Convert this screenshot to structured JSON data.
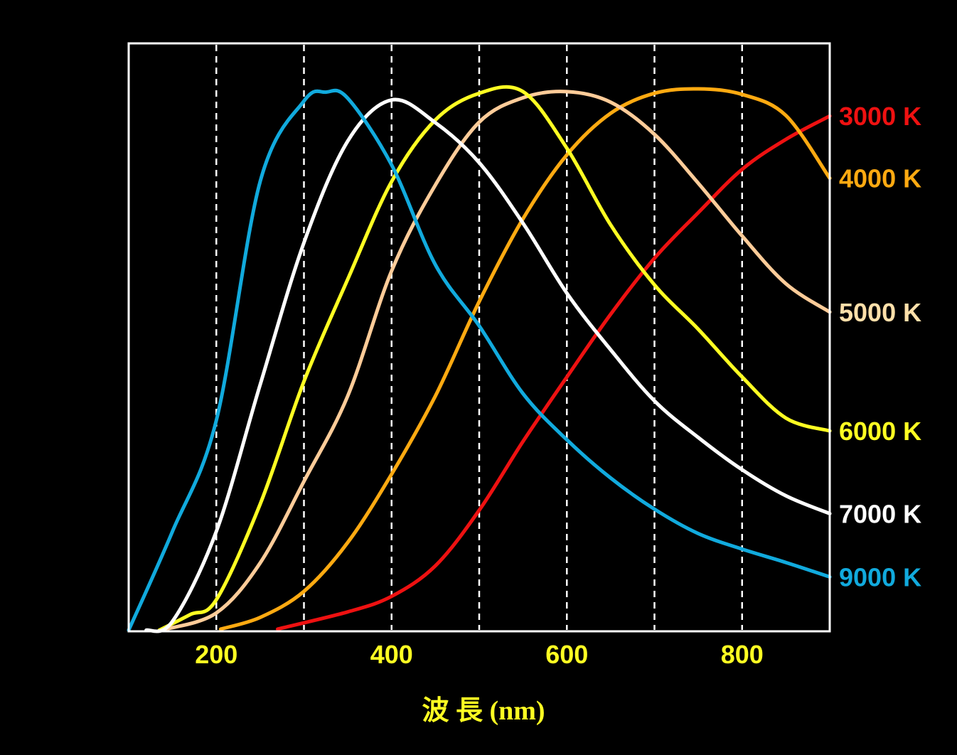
{
  "chart_data": {
    "type": "line",
    "title": "",
    "xlabel": "波 長 (nm)",
    "ylabel": "",
    "xlim": [
      100,
      900
    ],
    "ylim": [
      0,
      1
    ],
    "x_ticks": [
      200,
      400,
      600,
      800
    ],
    "x_tick_labels": [
      "200",
      "400",
      "600",
      "800"
    ],
    "gridlines_x": [
      200,
      300,
      400,
      500,
      600,
      700,
      800
    ],
    "grid": "vertical dashed",
    "legend_placement": "right (labels at line ends)",
    "series": [
      {
        "name": "3000 K",
        "color": "#ee1111",
        "label_color": "#ee1111",
        "x": [
          270,
          350,
          400,
          450,
          500,
          550,
          600,
          650,
          700,
          750,
          800,
          850,
          900
        ],
        "y": [
          0.004,
          0.035,
          0.063,
          0.118,
          0.218,
          0.342,
          0.458,
          0.571,
          0.672,
          0.754,
          0.832,
          0.886,
          0.928
        ]
      },
      {
        "name": "4000 K",
        "color": "#ffaa11",
        "label_color": "#ffaa11",
        "x": [
          205,
          250,
          300,
          350,
          400,
          450,
          500,
          550,
          600,
          650,
          700,
          750,
          800,
          850,
          900
        ],
        "y": [
          0.004,
          0.025,
          0.072,
          0.16,
          0.283,
          0.424,
          0.594,
          0.743,
          0.858,
          0.933,
          0.969,
          0.977,
          0.967,
          0.929,
          0.816
        ]
      },
      {
        "name": "5000 K",
        "color": "#ffcc99",
        "label_color": "#ffe0aa",
        "x": [
          140,
          200,
          250,
          300,
          350,
          400,
          450,
          500,
          550,
          600,
          650,
          700,
          750,
          800,
          850,
          900
        ],
        "y": [
          0.003,
          0.033,
          0.123,
          0.27,
          0.424,
          0.649,
          0.804,
          0.917,
          0.961,
          0.972,
          0.953,
          0.895,
          0.807,
          0.712,
          0.626,
          0.575
        ]
      },
      {
        "name": "6000 K",
        "color": "#ffff22",
        "label_color": "#ffff22",
        "x": [
          135,
          170,
          200,
          250,
          300,
          350,
          400,
          450,
          500,
          550,
          600,
          650,
          700,
          750,
          800,
          850,
          900
        ],
        "y": [
          0.002,
          0.03,
          0.057,
          0.229,
          0.45,
          0.634,
          0.81,
          0.921,
          0.969,
          0.972,
          0.87,
          0.732,
          0.624,
          0.544,
          0.458,
          0.384,
          0.361
        ]
      },
      {
        "name": "7000 K",
        "color": "#ffffff",
        "label_color": "#ffffff",
        "x": [
          120,
          150,
          200,
          250,
          300,
          350,
          400,
          450,
          500,
          550,
          600,
          650,
          700,
          750,
          800,
          850,
          900
        ],
        "y": [
          0.002,
          0.018,
          0.18,
          0.444,
          0.7,
          0.883,
          0.957,
          0.916,
          0.844,
          0.735,
          0.609,
          0.507,
          0.415,
          0.349,
          0.291,
          0.244,
          0.212
        ]
      },
      {
        "name": "9000 K",
        "color": "#11aadd",
        "label_color": "#11aadd",
        "x": [
          100,
          150,
          200,
          250,
          300,
          325,
          350,
          400,
          450,
          500,
          550,
          600,
          650,
          700,
          750,
          800,
          850,
          900
        ],
        "y": [
          0.002,
          0.18,
          0.38,
          0.81,
          0.955,
          0.971,
          0.96,
          0.84,
          0.66,
          0.55,
          0.428,
          0.345,
          0.276,
          0.22,
          0.176,
          0.148,
          0.124,
          0.098
        ]
      }
    ]
  }
}
